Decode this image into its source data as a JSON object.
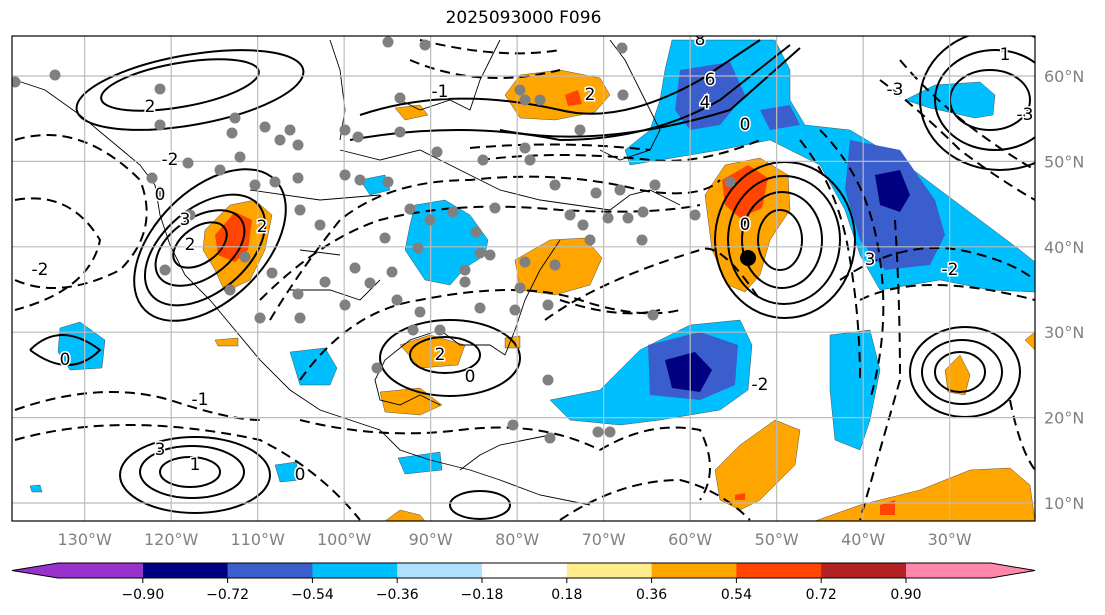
{
  "title": "2025093000 F096",
  "lon_ticks": [
    {
      "value": -130,
      "label": "130°W"
    },
    {
      "value": -120,
      "label": "120°W"
    },
    {
      "value": -110,
      "label": "110°W"
    },
    {
      "value": -100,
      "label": "100°W"
    },
    {
      "value": -90,
      "label": "90°W"
    },
    {
      "value": -80,
      "label": "80°W"
    },
    {
      "value": -70,
      "label": "70°W"
    },
    {
      "value": -60,
      "label": "60°W"
    },
    {
      "value": -50,
      "label": "50°W"
    },
    {
      "value": -40,
      "label": "40°W"
    },
    {
      "value": -30,
      "label": "30°W"
    }
  ],
  "lat_ticks": [
    {
      "value": 60,
      "label": "60°N"
    },
    {
      "value": 50,
      "label": "50°N"
    },
    {
      "value": 40,
      "label": "40°N"
    },
    {
      "value": 30,
      "label": "30°N"
    },
    {
      "value": 20,
      "label": "20°N"
    },
    {
      "value": 10,
      "label": "10°N"
    }
  ],
  "colorbar": {
    "under_color": "#9932cc",
    "over_color": "#ff88aa",
    "colors": [
      "#000080",
      "#3a5fcd",
      "#00bfff",
      "#b0e2ff",
      "#ffffff",
      "#ffec8b",
      "#ffa500",
      "#ff4500",
      "#b22222"
    ],
    "ticks": [
      "−0.90",
      "−0.72",
      "−0.54",
      "−0.36",
      "−0.18",
      "0.18",
      "0.36",
      "0.54",
      "0.72",
      "0.90"
    ]
  },
  "contour_labels": [
    "2",
    "2",
    "0",
    "3",
    "2",
    "-2",
    "-2",
    "0",
    "2",
    "-1",
    "1",
    "0",
    "3",
    "4",
    "6",
    "8",
    "0",
    "-3",
    "-2",
    "3",
    "-3",
    "-1",
    "2",
    "0",
    "-2",
    "0",
    "1"
  ]
}
